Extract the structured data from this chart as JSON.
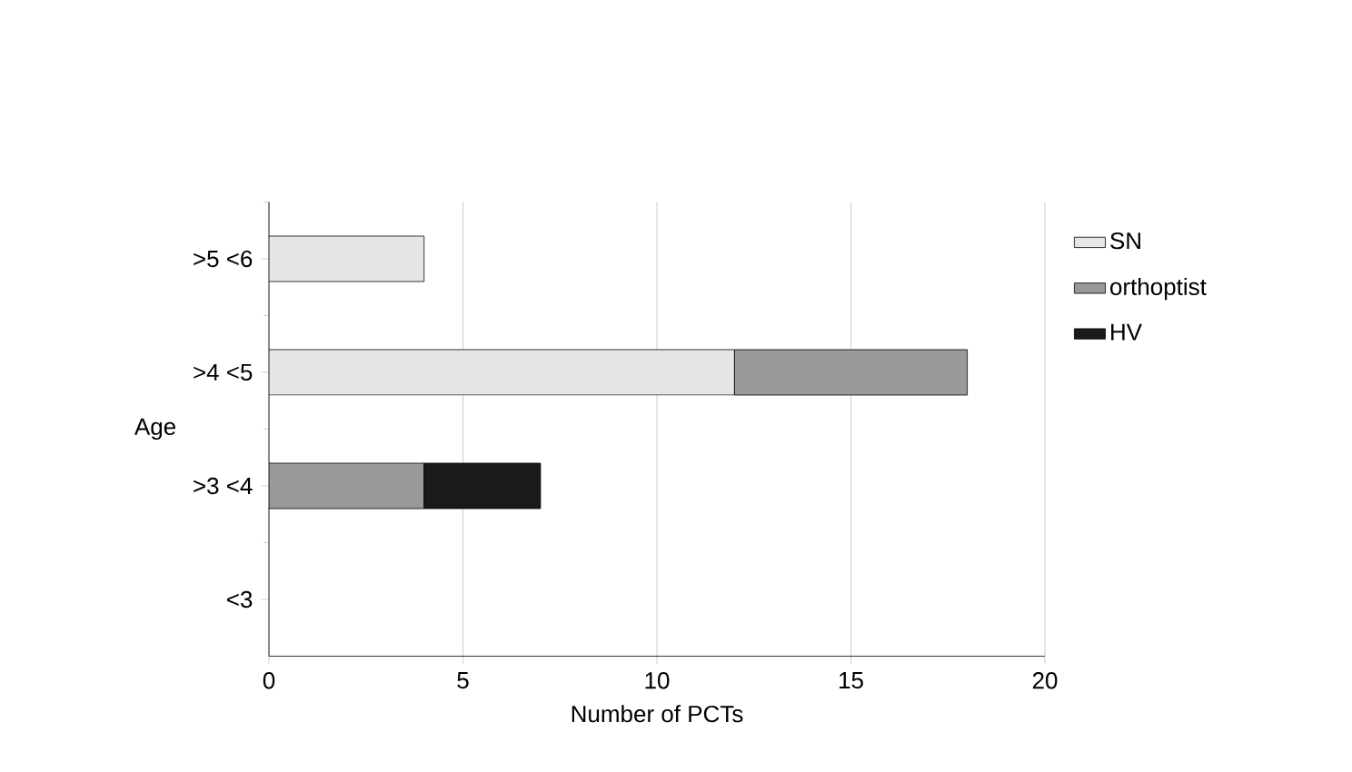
{
  "chart_data": {
    "type": "bar",
    "orientation": "horizontal",
    "stacked": true,
    "categories": [
      ">5 <6",
      ">4 <5",
      ">3 <4",
      "<3"
    ],
    "series": [
      {
        "name": "SN",
        "color": "#e6e6e6",
        "values": [
          4,
          12,
          null,
          null
        ]
      },
      {
        "name": "orthoptist",
        "color": "#999999",
        "values": [
          null,
          6,
          4,
          null
        ]
      },
      {
        "name": "HV",
        "color": "#1a1a1a",
        "values": [
          null,
          null,
          3,
          null
        ]
      }
    ],
    "xlim": [
      0,
      20
    ],
    "xticks": [
      0,
      5,
      10,
      15,
      20
    ],
    "grid": "x",
    "legend": "right",
    "xlabel": "Number of PCTs",
    "ylabel": "Age"
  }
}
